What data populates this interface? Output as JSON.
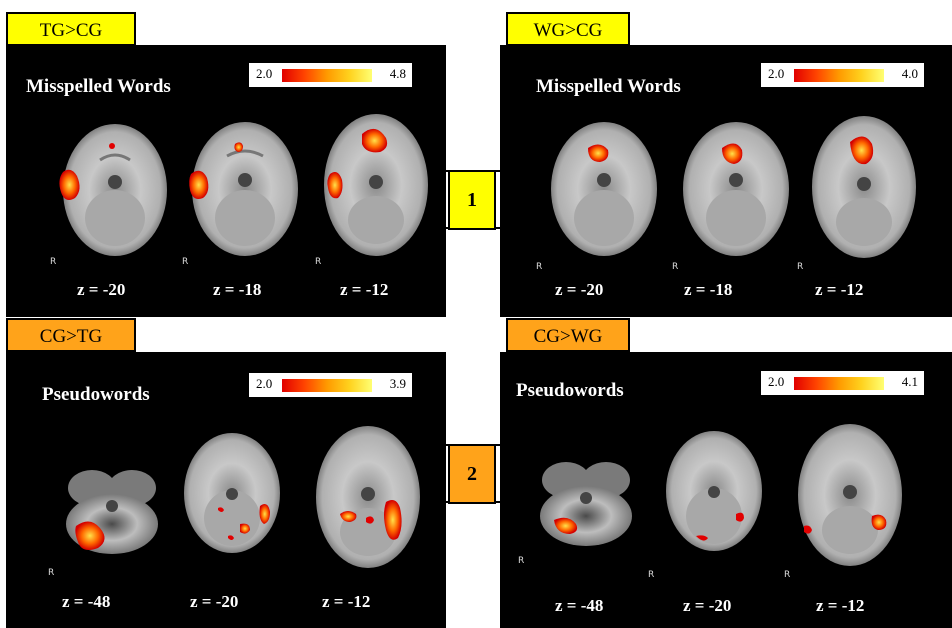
{
  "colors": {
    "contrast1_tag": "#ffff00",
    "contrast2_tag": "#ffa31a",
    "panel": "#000000"
  },
  "row_markers": [
    "1",
    "2"
  ],
  "panels": [
    {
      "tag": "TG>CG",
      "title": "Misspelled Words",
      "scale_min": "2.0",
      "scale_max": "4.8",
      "z_labels": [
        "z = -20",
        "z = -18",
        "z = -12"
      ],
      "r_label": "R"
    },
    {
      "tag": "WG>CG",
      "title": "Misspelled Words",
      "scale_min": "2.0",
      "scale_max": "4.0",
      "z_labels": [
        "z = -20",
        "z = -18",
        "z = -12"
      ],
      "r_label": "R"
    },
    {
      "tag": "CG>TG",
      "title": "Pseudowords",
      "scale_min": "2.0",
      "scale_max": "3.9",
      "z_labels": [
        "z =  -48",
        "z = -20",
        "z = -12"
      ],
      "r_label": "R"
    },
    {
      "tag": "CG>WG",
      "title": "Pseudowords",
      "scale_min": "2.0",
      "scale_max": "4.1",
      "z_labels": [
        "z = -48",
        "z = -20",
        "z = -12"
      ],
      "r_label": "R"
    }
  ]
}
